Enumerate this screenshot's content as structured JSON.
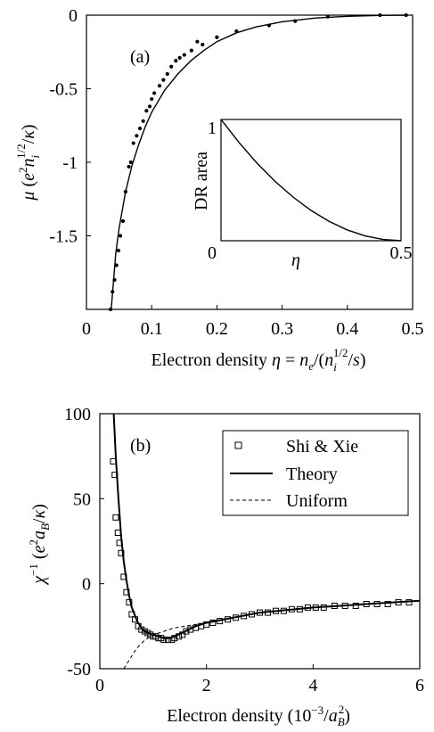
{
  "chart_data": [
    {
      "type": "scatter",
      "panel_label": "(a)",
      "xlabel": "Electron density η = n_e/(n_i^{1/2}/s)",
      "xlabel_parts": {
        "prefix": "Electron density ",
        "var": "η",
        "eq": " = ",
        "n": "n",
        "e": "e",
        "open": "/(",
        "ni": "n",
        "i": "i",
        "half": "1/2",
        "close": "/",
        "s": "s",
        "end": ")"
      },
      "ylabel": "μ (e²n_i^{1/2}/κ)",
      "ylabel_parts": {
        "mu": "μ",
        "open": " (",
        "e": "e",
        "two": "2",
        "n": "n",
        "i": "i",
        "half": "1/2",
        "slash": "/",
        "kappa": "κ",
        "close": ")"
      },
      "xlim": [
        0,
        0.5
      ],
      "ylim": [
        -2.0,
        0
      ],
      "x_ticks": [
        0,
        0.1,
        0.2,
        0.3,
        0.4,
        0.5
      ],
      "x_tick_labels": [
        "0",
        "0.1",
        "0.2",
        "0.3",
        "0.4",
        "0.5"
      ],
      "y_ticks": [
        0,
        -0.5,
        -1,
        -1.5
      ],
      "y_tick_labels": [
        "0",
        "-0.5",
        "-1",
        "-1.5"
      ],
      "series": [
        {
          "style": "points",
          "points": [
            [
              0.037,
              -2.0
            ],
            [
              0.04,
              -1.88
            ],
            [
              0.043,
              -1.8
            ],
            [
              0.046,
              -1.7
            ],
            [
              0.049,
              -1.6
            ],
            [
              0.052,
              -1.5
            ],
            [
              0.056,
              -1.4
            ],
            [
              0.06,
              -1.2
            ],
            [
              0.065,
              -1.03
            ],
            [
              0.068,
              -1.0
            ],
            [
              0.072,
              -0.87
            ],
            [
              0.077,
              -0.82
            ],
            [
              0.082,
              -0.77
            ],
            [
              0.087,
              -0.72
            ],
            [
              0.092,
              -0.65
            ],
            [
              0.097,
              -0.62
            ],
            [
              0.1,
              -0.57
            ],
            [
              0.104,
              -0.53
            ],
            [
              0.112,
              -0.48
            ],
            [
              0.118,
              -0.44
            ],
            [
              0.124,
              -0.4
            ],
            [
              0.13,
              -0.35
            ],
            [
              0.137,
              -0.31
            ],
            [
              0.143,
              -0.29
            ],
            [
              0.15,
              -0.27
            ],
            [
              0.161,
              -0.24
            ],
            [
              0.17,
              -0.18
            ],
            [
              0.178,
              -0.2
            ],
            [
              0.2,
              -0.15
            ],
            [
              0.23,
              -0.11
            ],
            [
              0.28,
              -0.07
            ],
            [
              0.32,
              -0.04
            ],
            [
              0.37,
              -0.01
            ],
            [
              0.45,
              0.0
            ],
            [
              0.49,
              0.0
            ]
          ]
        },
        {
          "style": "line",
          "points": [
            [
              0.038,
              -2.0
            ],
            [
              0.045,
              -1.62
            ],
            [
              0.05,
              -1.45
            ],
            [
              0.06,
              -1.2
            ],
            [
              0.07,
              -1.02
            ],
            [
              0.08,
              -0.88
            ],
            [
              0.09,
              -0.76
            ],
            [
              0.1,
              -0.66
            ],
            [
              0.12,
              -0.51
            ],
            [
              0.14,
              -0.4
            ],
            [
              0.16,
              -0.31
            ],
            [
              0.18,
              -0.24
            ],
            [
              0.2,
              -0.18
            ],
            [
              0.23,
              -0.12
            ],
            [
              0.26,
              -0.08
            ],
            [
              0.3,
              -0.045
            ],
            [
              0.35,
              -0.02
            ],
            [
              0.4,
              -0.008
            ],
            [
              0.45,
              -0.002
            ],
            [
              0.49,
              0.0
            ]
          ]
        }
      ],
      "inset": {
        "type": "line",
        "xlabel": "η",
        "ylabel": "DR area",
        "xlim": [
          0,
          0.5
        ],
        "ylim": [
          0,
          1
        ],
        "x_tick_labels": [
          "0",
          "0.5"
        ],
        "y_tick_labels": [
          "0",
          "1"
        ],
        "points": [
          [
            0.0,
            1.0
          ],
          [
            0.05,
            0.81
          ],
          [
            0.1,
            0.64
          ],
          [
            0.15,
            0.49
          ],
          [
            0.2,
            0.36
          ],
          [
            0.25,
            0.25
          ],
          [
            0.3,
            0.16
          ],
          [
            0.35,
            0.09
          ],
          [
            0.4,
            0.04
          ],
          [
            0.45,
            0.01
          ],
          [
            0.5,
            0.0
          ]
        ]
      }
    },
    {
      "type": "line",
      "panel_label": "(b)",
      "xlabel": "Electron density (10⁻³/a_B²)",
      "xlabel_parts": {
        "prefix": "Electron density (10",
        "exp": "−3",
        "slash": "/",
        "a": "a",
        "B": "B",
        "two": "2",
        "close": ")"
      },
      "ylabel": "χ⁻¹ (e²a_B/κ)",
      "ylabel_parts": {
        "chi": "χ",
        "minus1": "−1",
        "open": " (",
        "e": "e",
        "two": "2",
        "a": "a",
        "B": "B",
        "slash": "/",
        "kappa": "κ",
        "close": ")"
      },
      "xlim": [
        0,
        6
      ],
      "ylim": [
        -50,
        100
      ],
      "x_ticks": [
        0,
        2,
        4,
        6
      ],
      "x_tick_labels": [
        "0",
        "2",
        "4",
        "6"
      ],
      "y_ticks": [
        100,
        50,
        0,
        -50
      ],
      "y_tick_labels": [
        "100",
        "50",
        "0",
        "-50"
      ],
      "legend_position": "top-right",
      "series": [
        {
          "name": "Shi & Xie",
          "style": "squares",
          "points": [
            [
              0.25,
              72
            ],
            [
              0.28,
              64
            ],
            [
              0.3,
              39
            ],
            [
              0.34,
              30
            ],
            [
              0.37,
              24
            ],
            [
              0.4,
              18
            ],
            [
              0.45,
              4
            ],
            [
              0.5,
              -5
            ],
            [
              0.55,
              -11
            ],
            [
              0.6,
              -18
            ],
            [
              0.66,
              -21
            ],
            [
              0.72,
              -25
            ],
            [
              0.78,
              -27
            ],
            [
              0.84,
              -28
            ],
            [
              0.9,
              -29
            ],
            [
              0.95,
              -30
            ],
            [
              1.0,
              -31
            ],
            [
              1.05,
              -31
            ],
            [
              1.1,
              -32
            ],
            [
              1.15,
              -32
            ],
            [
              1.2,
              -33
            ],
            [
              1.28,
              -33
            ],
            [
              1.35,
              -33
            ],
            [
              1.4,
              -32
            ],
            [
              1.48,
              -31
            ],
            [
              1.55,
              -30
            ],
            [
              1.62,
              -28
            ],
            [
              1.7,
              -27
            ],
            [
              1.8,
              -26
            ],
            [
              1.9,
              -25
            ],
            [
              2.0,
              -24
            ],
            [
              2.12,
              -23
            ],
            [
              2.25,
              -22
            ],
            [
              2.4,
              -21
            ],
            [
              2.55,
              -20
            ],
            [
              2.7,
              -19
            ],
            [
              2.85,
              -18
            ],
            [
              3.0,
              -17
            ],
            [
              3.15,
              -17
            ],
            [
              3.3,
              -16
            ],
            [
              3.45,
              -16
            ],
            [
              3.6,
              -15
            ],
            [
              3.75,
              -15
            ],
            [
              3.9,
              -14
            ],
            [
              4.05,
              -14
            ],
            [
              4.2,
              -14
            ],
            [
              4.4,
              -13
            ],
            [
              4.6,
              -13
            ],
            [
              4.8,
              -13
            ],
            [
              5.0,
              -12
            ],
            [
              5.2,
              -12
            ],
            [
              5.4,
              -12
            ],
            [
              5.6,
              -11
            ],
            [
              5.8,
              -11
            ]
          ]
        },
        {
          "name": "Theory",
          "style": "solid",
          "points": [
            [
              0.26,
              100
            ],
            [
              0.3,
              75
            ],
            [
              0.35,
              50
            ],
            [
              0.4,
              28
            ],
            [
              0.45,
              13
            ],
            [
              0.5,
              2
            ],
            [
              0.55,
              -7
            ],
            [
              0.6,
              -14
            ],
            [
              0.7,
              -22
            ],
            [
              0.8,
              -27
            ],
            [
              0.9,
              -29
            ],
            [
              1.0,
              -30
            ],
            [
              1.1,
              -31
            ],
            [
              1.2,
              -32
            ],
            [
              1.3,
              -32
            ],
            [
              1.4,
              -31
            ],
            [
              1.6,
              -28
            ],
            [
              1.8,
              -25
            ],
            [
              2.0,
              -23
            ],
            [
              2.5,
              -20
            ],
            [
              3.0,
              -17
            ],
            [
              3.5,
              -15.5
            ],
            [
              4.0,
              -14
            ],
            [
              4.5,
              -13
            ],
            [
              5.0,
              -12
            ],
            [
              5.5,
              -11
            ],
            [
              6.0,
              -10
            ]
          ]
        },
        {
          "name": "Uniform",
          "style": "dashed",
          "points": [
            [
              0.45,
              -50
            ],
            [
              0.55,
              -45
            ],
            [
              0.65,
              -40
            ],
            [
              0.75,
              -36
            ],
            [
              0.85,
              -33
            ],
            [
              1.0,
              -30
            ],
            [
              1.2,
              -28
            ],
            [
              1.4,
              -26
            ],
            [
              1.6,
              -25
            ],
            [
              1.8,
              -24
            ],
            [
              2.0,
              -23
            ],
            [
              2.5,
              -20
            ],
            [
              3.0,
              -17
            ],
            [
              3.5,
              -15.5
            ],
            [
              4.0,
              -14
            ],
            [
              4.5,
              -13
            ],
            [
              5.0,
              -12
            ],
            [
              5.5,
              -11
            ],
            [
              6.0,
              -10
            ]
          ]
        }
      ]
    }
  ]
}
